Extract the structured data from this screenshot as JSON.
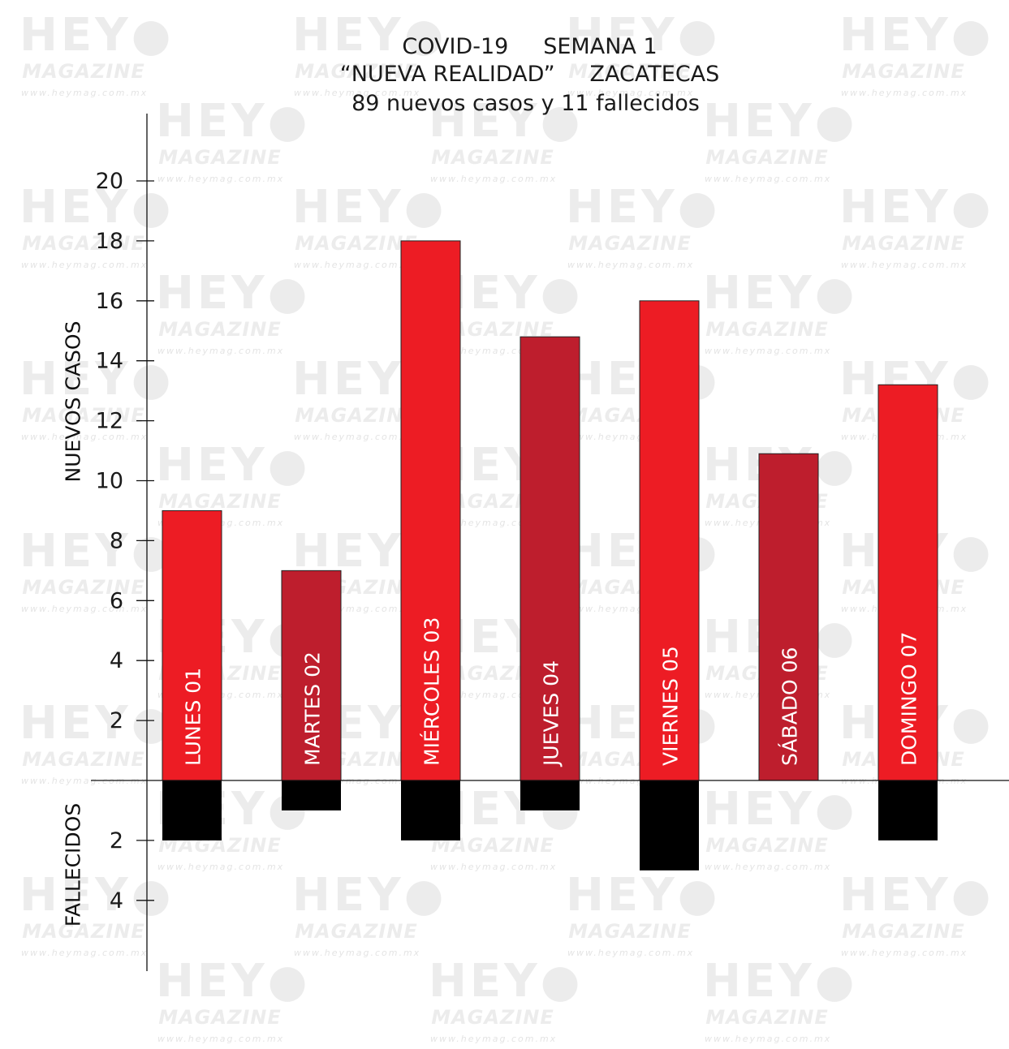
{
  "title": {
    "line1": "COVID-19     SEMANA 1",
    "line2": "“NUEVA REALIDAD”     ZACATECAS",
    "line3": "89 nuevos casos y 11 fallecidos"
  },
  "watermark": {
    "brand": "HEY",
    "sub": "MAGAZINE",
    "url": "www.heymag.com.mx"
  },
  "colors": {
    "cases_bright": "#ed1c24",
    "cases_dark": "#be1e2d",
    "deaths": "#000000",
    "axis": "#111111"
  },
  "chart_data": {
    "type": "bar",
    "title": "COVID-19 SEMANA 1 “NUEVA REALIDAD” ZACATECAS",
    "subtitle": "89 nuevos casos y 11 fallecidos",
    "categories": [
      "LUNES 01",
      "MARTES 02",
      "MIÉRCOLES 03",
      "JUEVES 04",
      "VIERNES 05",
      "SÁBADO 06",
      "DOMINGO 07"
    ],
    "series": [
      {
        "name": "NUEVOS CASOS",
        "values": [
          9,
          7,
          18,
          14.8,
          16,
          10.9,
          13.2
        ],
        "colors": [
          "#ed1c24",
          "#be1e2d",
          "#ed1c24",
          "#be1e2d",
          "#ed1c24",
          "#be1e2d",
          "#ed1c24"
        ],
        "direction": "up"
      },
      {
        "name": "FALLECIDOS",
        "values": [
          2,
          1,
          2,
          1,
          3,
          0,
          2
        ],
        "color": "#000000",
        "direction": "down"
      }
    ],
    "ylabel_top": "NUEVOS CASOS",
    "ylabel_bottom": "FALLECIDOS",
    "yticks_top": [
      "2",
      "4",
      "6",
      "8",
      "10",
      "12",
      "14",
      "16",
      "18",
      "20"
    ],
    "yticks_bottom": [
      "2",
      "4"
    ],
    "ylim_top": [
      0,
      20
    ],
    "ylim_bottom": [
      0,
      4
    ],
    "grid": false,
    "legend": "none"
  }
}
